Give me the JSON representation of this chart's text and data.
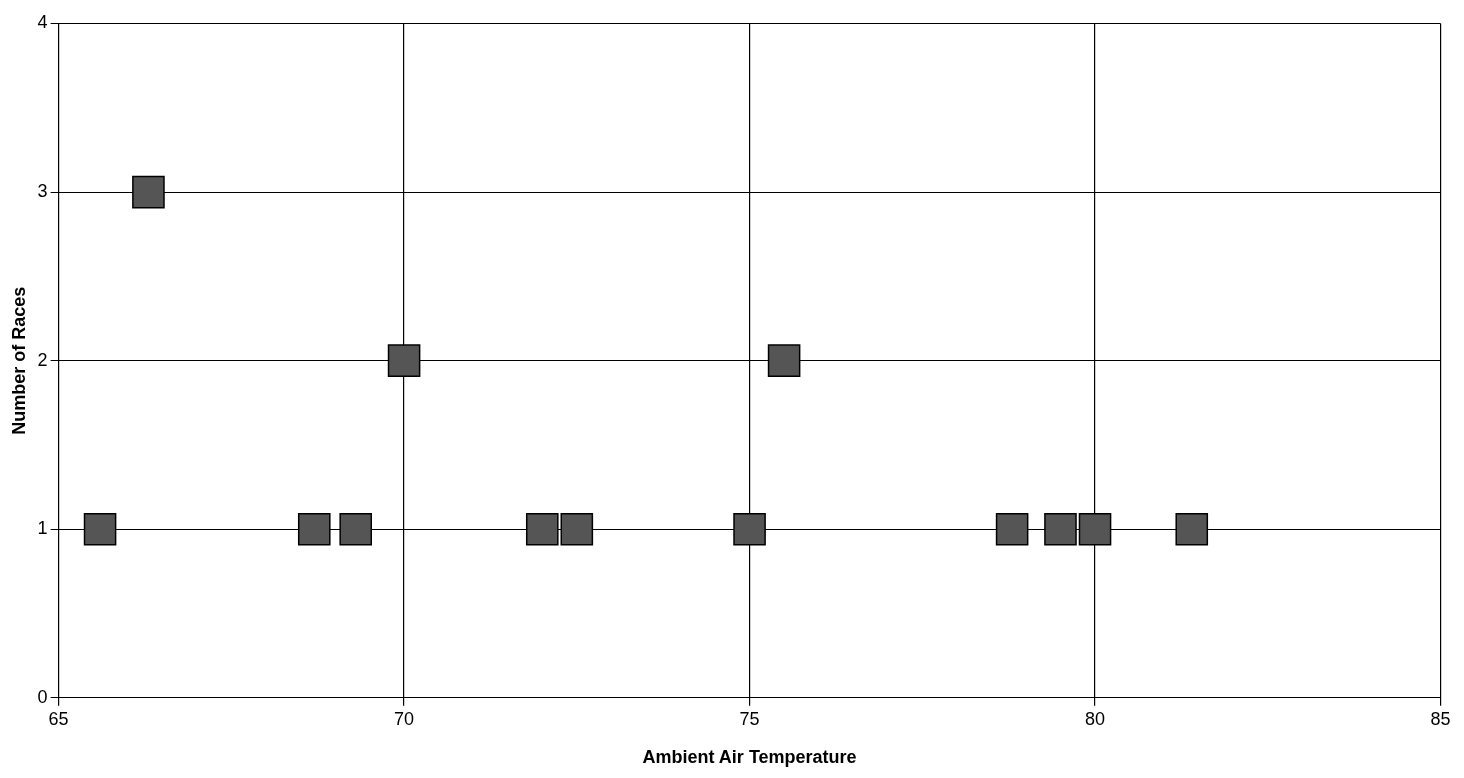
{
  "chart_data": {
    "type": "scatter",
    "xlabel": "Ambient Air Temperature",
    "ylabel": "Number of Races",
    "x": [
      65.6,
      66.3,
      68.7,
      69.3,
      70.0,
      72.0,
      72.5,
      75.0,
      75.5,
      78.8,
      79.5,
      80.0,
      81.4
    ],
    "values": [
      1,
      3,
      1,
      1,
      2,
      1,
      1,
      1,
      2,
      1,
      1,
      1,
      1
    ],
    "color": "#555555",
    "marker": "square",
    "xlim": [
      65,
      85
    ],
    "xticks": [
      65,
      70,
      75,
      80,
      85
    ],
    "ylim": [
      0,
      4
    ],
    "yticks": [
      0,
      1,
      2,
      3,
      4
    ],
    "grid": true,
    "legend": false
  }
}
